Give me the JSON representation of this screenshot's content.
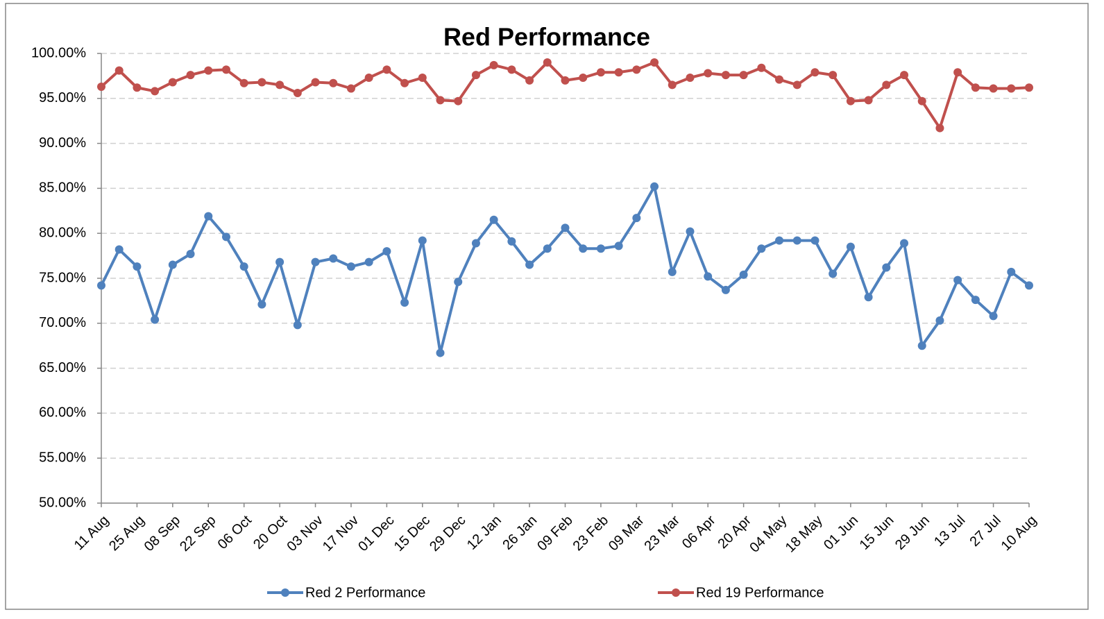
{
  "chart_data": {
    "type": "line",
    "title": "Red Performance",
    "categories": [
      "11 Aug",
      null,
      "25 Aug",
      null,
      "08 Sep",
      null,
      "22 Sep",
      null,
      "06 Oct",
      null,
      "20 Oct",
      null,
      "03 Nov",
      null,
      "17 Nov",
      null,
      "01 Dec",
      null,
      "15 Dec",
      null,
      "29 Dec",
      null,
      "12 Jan",
      null,
      "26 Jan",
      null,
      "09 Feb",
      null,
      "23 Feb",
      null,
      "09 Mar",
      null,
      "23 Mar",
      null,
      "06 Apr",
      null,
      "20 Apr",
      null,
      "04 May",
      null,
      "18 May",
      null,
      "01 Jun",
      null,
      "15 Jun",
      null,
      "29 Jun",
      null,
      "13 Jul",
      null,
      "27 Jul",
      null,
      "10 Aug"
    ],
    "series": [
      {
        "name": "Red 2 Performance",
        "color": "#4f81bd",
        "values": [
          74.2,
          78.2,
          76.3,
          70.4,
          76.5,
          77.7,
          81.9,
          79.6,
          76.3,
          72.1,
          76.8,
          69.8,
          76.8,
          77.2,
          76.3,
          76.8,
          78.0,
          72.3,
          79.2,
          66.7,
          74.6,
          78.9,
          81.5,
          79.1,
          76.5,
          78.3,
          80.6,
          78.3,
          78.3,
          78.6,
          81.7,
          85.2,
          75.7,
          80.2,
          75.2,
          73.7,
          75.4,
          78.3,
          79.2,
          79.2,
          79.2,
          75.5,
          78.5,
          72.9,
          76.2,
          78.9,
          67.5,
          70.3,
          74.8,
          72.6,
          70.8,
          75.7,
          74.2
        ]
      },
      {
        "name": "Red 19 Performance",
        "color": "#c0504d",
        "values": [
          96.3,
          98.1,
          96.2,
          95.8,
          96.8,
          97.6,
          98.1,
          98.2,
          96.7,
          96.8,
          96.5,
          95.6,
          96.8,
          96.7,
          96.1,
          97.3,
          98.2,
          96.7,
          97.3,
          94.8,
          94.7,
          97.6,
          98.7,
          98.2,
          97.0,
          99.0,
          97.0,
          97.3,
          97.9,
          97.9,
          98.2,
          99.0,
          96.5,
          97.3,
          97.8,
          97.6,
          97.6,
          98.4,
          97.1,
          96.5,
          97.9,
          97.6,
          94.7,
          94.8,
          96.5,
          97.6,
          94.7,
          91.7,
          97.9,
          96.2,
          96.1,
          96.1,
          96.2
        ]
      }
    ],
    "ylim": [
      50,
      100
    ],
    "yticks": [
      {
        "value": 50,
        "label": "50.00%"
      },
      {
        "value": 55,
        "label": "55.00%"
      },
      {
        "value": 60,
        "label": "60.00%"
      },
      {
        "value": 65,
        "label": "65.00%"
      },
      {
        "value": 70,
        "label": "70.00%"
      },
      {
        "value": 75,
        "label": "75.00%"
      },
      {
        "value": 80,
        "label": "80.00%"
      },
      {
        "value": 85,
        "label": "85.00%"
      },
      {
        "value": 90,
        "label": "90.00%"
      },
      {
        "value": 95,
        "label": "95.00%"
      },
      {
        "value": 100,
        "label": "100.00%"
      }
    ],
    "grid": true,
    "legend": "bottom"
  }
}
